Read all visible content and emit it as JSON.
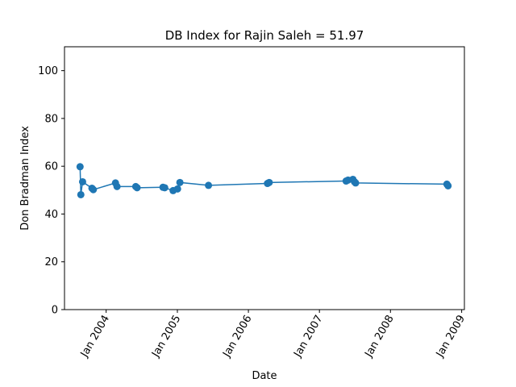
{
  "chart_data": {
    "type": "line",
    "title": "DB Index for Rajin Saleh = 51.97",
    "xlabel": "Date",
    "ylabel": "Don Bradman Index",
    "ylim": [
      0,
      110
    ],
    "xlim": [
      "2003-06-01",
      "2009-01-15"
    ],
    "yticks": [
      0,
      20,
      40,
      60,
      80,
      100
    ],
    "xticks": [
      {
        "date": "2004-01-01",
        "label": "Jan 2004"
      },
      {
        "date": "2005-01-01",
        "label": "Jan 2005"
      },
      {
        "date": "2006-01-01",
        "label": "Jan 2006"
      },
      {
        "date": "2007-01-01",
        "label": "Jan 2007"
      },
      {
        "date": "2008-01-01",
        "label": "Jan 2008"
      },
      {
        "date": "2009-01-01",
        "label": "Jan 2009"
      }
    ],
    "grid": false,
    "color": "#1f77b4",
    "series": [
      {
        "points": [
          {
            "x": "2003-08-20",
            "y": 59.8
          },
          {
            "x": "2003-08-24",
            "y": 48.1
          },
          {
            "x": "2003-09-02",
            "y": 53.5
          },
          {
            "x": "2003-10-20",
            "y": 50.8
          },
          {
            "x": "2003-10-27",
            "y": 50.2
          },
          {
            "x": "2004-02-18",
            "y": 53.0
          },
          {
            "x": "2004-02-26",
            "y": 51.5
          },
          {
            "x": "2004-06-01",
            "y": 51.5
          },
          {
            "x": "2004-06-08",
            "y": 51.0
          },
          {
            "x": "2004-10-19",
            "y": 51.2
          },
          {
            "x": "2004-10-28",
            "y": 51.0
          },
          {
            "x": "2004-12-10",
            "y": 49.8
          },
          {
            "x": "2005-01-02",
            "y": 50.5
          },
          {
            "x": "2005-01-14",
            "y": 53.2
          },
          {
            "x": "2005-06-10",
            "y": 52.0
          },
          {
            "x": "2006-04-09",
            "y": 52.8
          },
          {
            "x": "2006-04-18",
            "y": 53.2
          },
          {
            "x": "2007-05-18",
            "y": 53.8
          },
          {
            "x": "2007-05-28",
            "y": 54.2
          },
          {
            "x": "2007-06-22",
            "y": 54.5
          },
          {
            "x": "2007-06-30",
            "y": 53.5
          },
          {
            "x": "2007-07-06",
            "y": 53.0
          },
          {
            "x": "2008-10-17",
            "y": 52.5
          },
          {
            "x": "2008-10-23",
            "y": 51.8
          }
        ]
      }
    ]
  }
}
